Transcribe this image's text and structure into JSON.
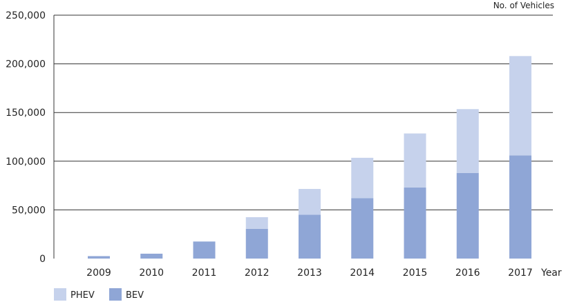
{
  "chart_data": {
    "type": "bar",
    "stacked": true,
    "categories": [
      "2009",
      "2010",
      "2011",
      "2012",
      "2013",
      "2014",
      "2015",
      "2016",
      "2017"
    ],
    "series": [
      {
        "name": "BEV",
        "values": [
          2500,
          5000,
          17500,
          30500,
          45000,
          62000,
          73000,
          88000,
          106000
        ]
      },
      {
        "name": "PHEV",
        "values": [
          0,
          0,
          0,
          12000,
          26500,
          41500,
          55500,
          65500,
          102000
        ]
      }
    ],
    "colors": {
      "BEV": "#8fa6d6",
      "PHEV": "#c6d2ec",
      "grid": "#333333"
    },
    "ylabel": "No. of Vehicles",
    "xlabel": "Year",
    "ylim": [
      0,
      250000
    ],
    "yticks": [
      0,
      50000,
      100000,
      150000,
      200000,
      250000
    ],
    "ytick_labels": [
      "0",
      "50,000",
      "100,000",
      "150,000",
      "200,000",
      "250,000"
    ],
    "grid": true,
    "legend": {
      "placement": "bottom-left",
      "order": [
        "PHEV",
        "BEV"
      ]
    }
  }
}
